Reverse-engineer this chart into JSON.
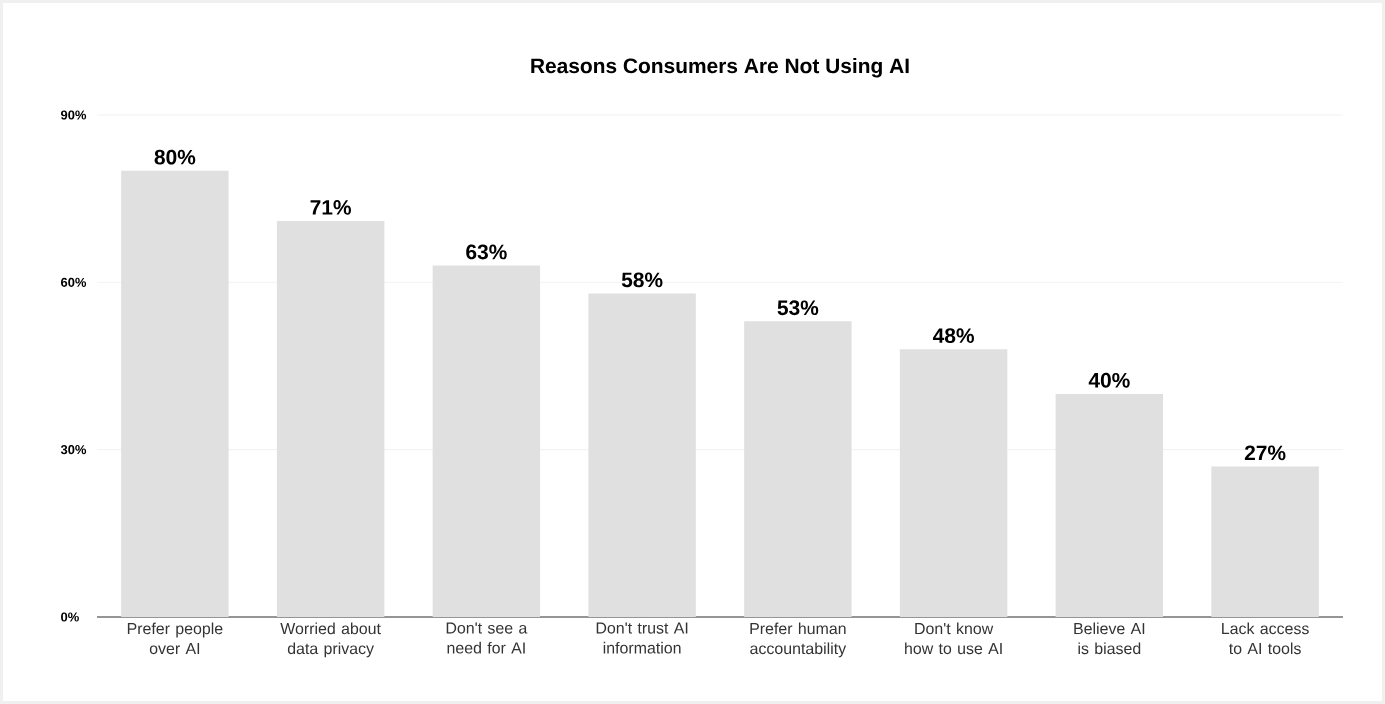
{
  "chart_data": {
    "type": "bar",
    "title": "Reasons Consumers Are Not Using AI",
    "categories": [
      "Prefer people over AI",
      "Worried about data privacy",
      "Don't see a need for AI",
      "Don't trust AI information",
      "Prefer human accountability",
      "Don't know how to use AI",
      "Believe AI is biased",
      "Lack access to AI tools"
    ],
    "values": [
      80,
      71,
      63,
      58,
      53,
      48,
      40,
      27
    ],
    "value_labels": [
      "80%",
      "71%",
      "63%",
      "58%",
      "53%",
      "48%",
      "40%",
      "27%"
    ],
    "color": "#e0e0e0",
    "ylim": [
      0,
      90
    ],
    "yticks": [
      {
        "value": 0,
        "label": "0%"
      },
      {
        "value": 30,
        "label": "30%"
      },
      {
        "value": 60,
        "label": "60%"
      },
      {
        "value": 90,
        "label": "90%"
      }
    ],
    "grid": "y"
  }
}
